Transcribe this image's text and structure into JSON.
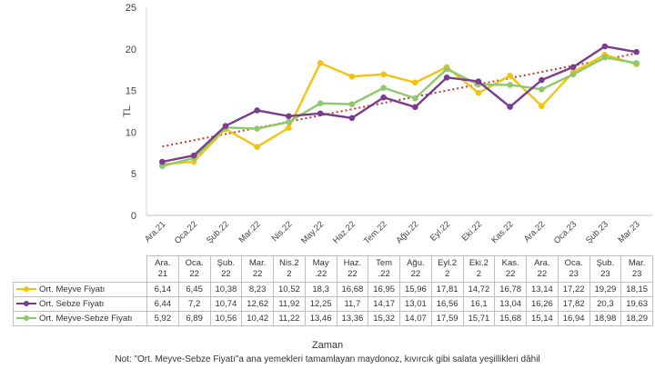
{
  "chart_data": {
    "type": "line",
    "categories": [
      "Ara.21",
      "Oca.22",
      "Şub.22",
      "Mar.22",
      "Nis.22",
      "May.22",
      "Haz.22",
      "Tem.22",
      "Ağu.22",
      "Eyl.22",
      "Eki.22",
      "Kas.22",
      "Ara.22",
      "Oca.23",
      "Şub.23",
      "Mar.23"
    ],
    "table_headers": [
      [
        "Ara.",
        "21"
      ],
      [
        "Oca.",
        "22"
      ],
      [
        "Şub.",
        "22"
      ],
      [
        "Mar.",
        "22"
      ],
      [
        "Nis.2",
        "2"
      ],
      [
        "May",
        ".22"
      ],
      [
        "Haz.",
        "22"
      ],
      [
        "Tem",
        ".22"
      ],
      [
        "Ağu.",
        "22"
      ],
      [
        "Eyl.2",
        "2"
      ],
      [
        "Eki.2",
        "2"
      ],
      [
        "Kas.",
        "22"
      ],
      [
        "Ara.",
        "22"
      ],
      [
        "Oca.",
        "23"
      ],
      [
        "Şub.",
        "23"
      ],
      [
        "Mar.",
        "23"
      ]
    ],
    "series": [
      {
        "name": "Ort. Meyve Fiyatı",
        "color": "#f2c40f",
        "values": [
          6.14,
          6.45,
          10.38,
          8.23,
          10.52,
          18.3,
          16.68,
          16.95,
          15.96,
          17.81,
          14.72,
          16.78,
          13.14,
          17.22,
          19.29,
          18.15
        ],
        "labels": [
          "6,14",
          "6,45",
          "10,38",
          "8,23",
          "10,52",
          "18,3",
          "16,68",
          "16,95",
          "15,96",
          "17,81",
          "14,72",
          "16,78",
          "13,14",
          "17,22",
          "19,29",
          "18,15"
        ]
      },
      {
        "name": "Ort. Sebze Fiyatı",
        "color": "#7a3c8c",
        "values": [
          6.44,
          7.2,
          10.74,
          12.62,
          11.92,
          12.25,
          11.7,
          14.17,
          13.01,
          16.56,
          16.1,
          13.04,
          16.26,
          17.82,
          20.3,
          19.63
        ],
        "labels": [
          "6,44",
          "7,2",
          "10,74",
          "12,62",
          "11,92",
          "12,25",
          "11,7",
          "14,17",
          "13,01",
          "16,56",
          "16,1",
          "13,04",
          "16,26",
          "17,82",
          "20,3",
          "19,63"
        ]
      },
      {
        "name": "Ort. Meyve-Sebze Fiyatı",
        "color": "#8fc96b",
        "values": [
          5.92,
          6.89,
          10.56,
          10.42,
          11.22,
          13.46,
          13.36,
          15.32,
          14.07,
          17.59,
          15.71,
          15.68,
          15.14,
          16.94,
          18.98,
          18.29
        ],
        "labels": [
          "5,92",
          "6,89",
          "10,56",
          "10,42",
          "11,22",
          "13,46",
          "13,36",
          "15,32",
          "14,07",
          "17,59",
          "15,71",
          "15,68",
          "15,14",
          "16,94",
          "18,98",
          "18,29"
        ]
      }
    ],
    "trendline": {
      "color": "#c0392b",
      "style": "dotted"
    },
    "ylabel": "TL",
    "xlabel": "Zaman",
    "ylim": [
      0,
      25
    ],
    "yticks": [
      0,
      5,
      10,
      15,
      20,
      25
    ],
    "grid": false
  },
  "note": "Not: \"Ort. Meyve-Sebze Fiyatı\"a ana yemekleri tamamlayan maydonoz, kıvırcık gibi salata yeşillikleri dâhil"
}
